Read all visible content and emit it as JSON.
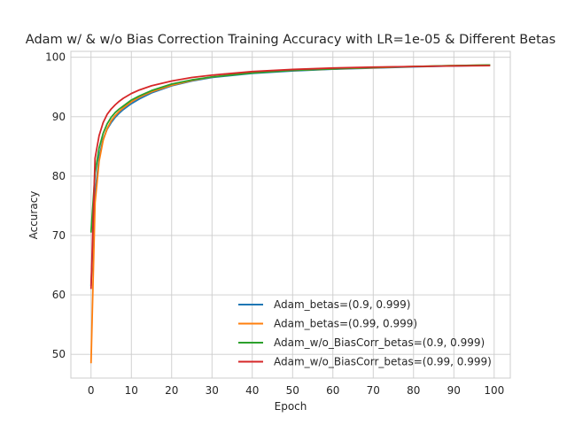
{
  "chart_data": {
    "type": "line",
    "title": "Adam w/ & w/o Bias Correction Training Accuracy with LR=1e-05 & Different Betas",
    "xlabel": "Epoch",
    "ylabel": "Accuracy",
    "xlim": [
      -5,
      104
    ],
    "ylim": [
      46,
      101
    ],
    "x_ticks": [
      0,
      10,
      20,
      30,
      40,
      50,
      60,
      70,
      80,
      90,
      100
    ],
    "y_ticks": [
      50,
      60,
      70,
      80,
      90,
      100
    ],
    "grid": true,
    "legend_position": "lower-right",
    "x": [
      0,
      1,
      2,
      3,
      4,
      5,
      6,
      7,
      8,
      10,
      12,
      15,
      20,
      25,
      30,
      40,
      50,
      60,
      70,
      80,
      90,
      99
    ],
    "series": [
      {
        "name": "Adam_betas=(0.9, 0.999)",
        "color": "#1f77b4",
        "values": [
          61.5,
          77.0,
          83.2,
          86.2,
          87.9,
          89.0,
          89.9,
          90.6,
          91.2,
          92.2,
          93.0,
          94.0,
          95.2,
          96.0,
          96.6,
          97.3,
          97.7,
          98.0,
          98.2,
          98.4,
          98.55,
          98.65
        ]
      },
      {
        "name": "Adam_betas=(0.99, 0.999)",
        "color": "#ff7f0e",
        "values": [
          48.5,
          75.5,
          82.5,
          86.0,
          88.0,
          89.3,
          90.2,
          90.9,
          91.5,
          92.5,
          93.3,
          94.2,
          95.3,
          96.1,
          96.7,
          97.4,
          97.8,
          98.05,
          98.25,
          98.45,
          98.6,
          98.7
        ]
      },
      {
        "name": "Adam_w/o_BiasCorr_betas=(0.9, 0.999)",
        "color": "#2ca02c",
        "values": [
          70.5,
          80.5,
          84.7,
          87.2,
          88.8,
          89.9,
          90.7,
          91.3,
          91.8,
          92.8,
          93.5,
          94.4,
          95.5,
          96.2,
          96.7,
          97.35,
          97.8,
          98.05,
          98.3,
          98.45,
          98.6,
          98.7
        ]
      },
      {
        "name": "Adam_w/o_BiasCorr_betas=(0.99, 0.999)",
        "color": "#d62728",
        "values": [
          61.0,
          83.0,
          86.8,
          89.0,
          90.4,
          91.3,
          92.0,
          92.6,
          93.1,
          93.9,
          94.5,
          95.2,
          96.0,
          96.6,
          97.0,
          97.6,
          97.95,
          98.2,
          98.35,
          98.45,
          98.55,
          98.6
        ]
      }
    ]
  }
}
